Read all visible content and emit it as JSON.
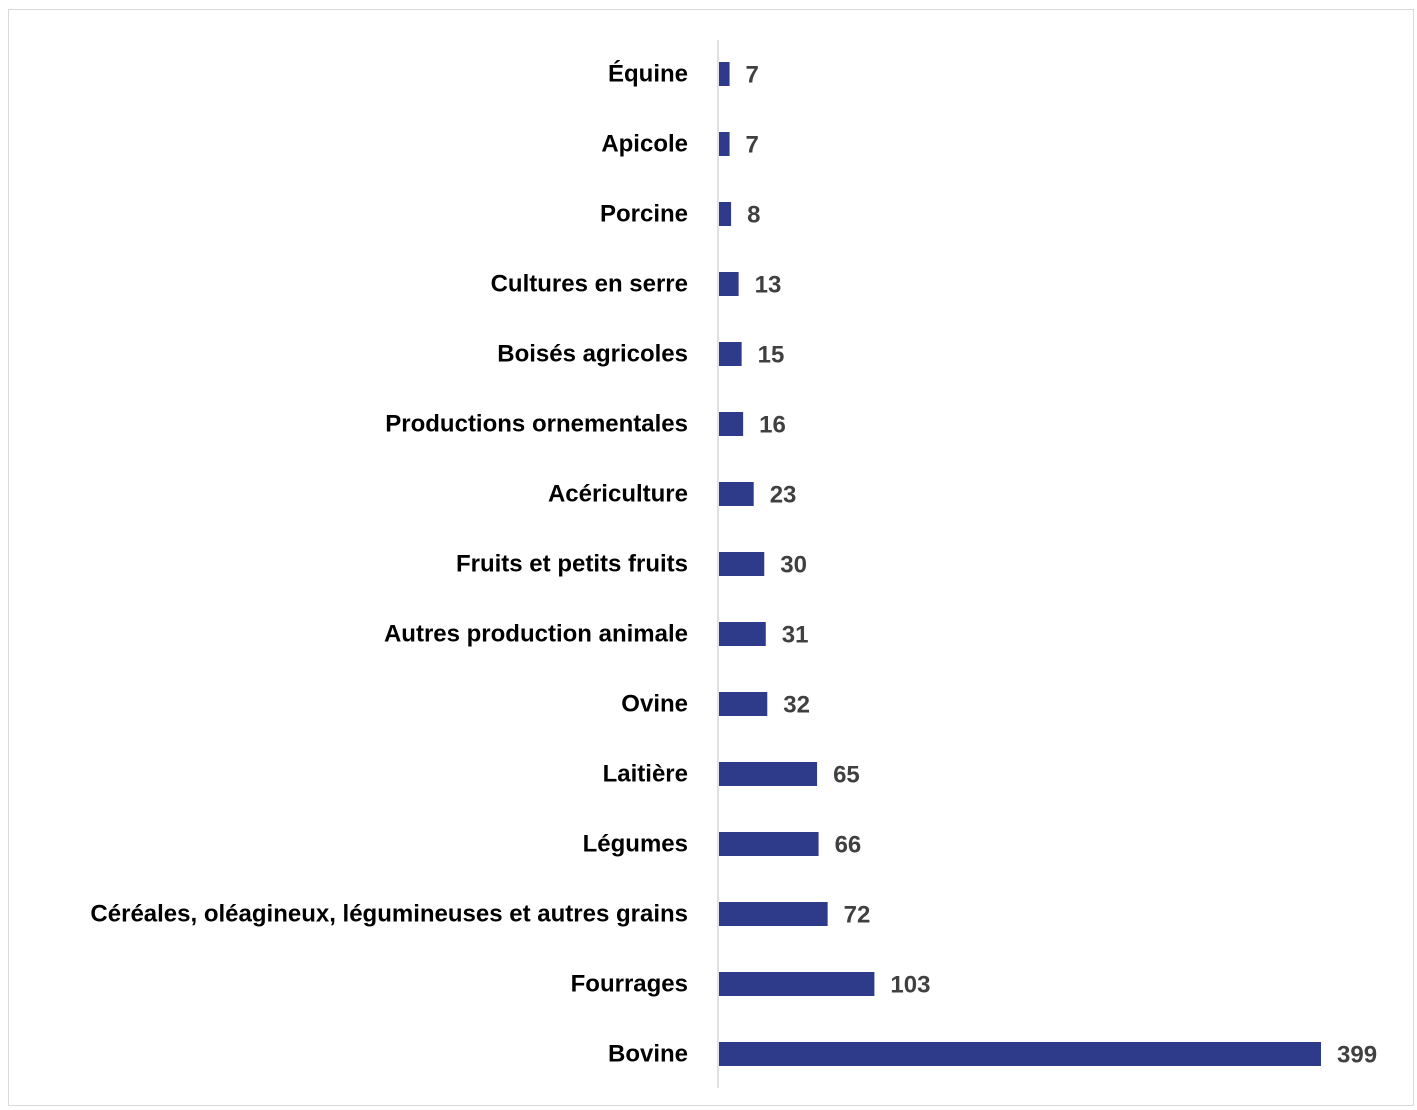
{
  "chart_data": {
    "type": "bar",
    "orientation": "horizontal",
    "categories": [
      "Équine",
      "Apicole",
      "Porcine",
      "Cultures en serre",
      "Boisés agricoles",
      "Productions ornementales",
      "Acériculture",
      "Fruits et petits fruits",
      "Autres production animale",
      "Ovine",
      "Laitière",
      "Légumes",
      "Céréales, oléagineux, légumineuses et autres grains",
      "Fourrages",
      "Bovine"
    ],
    "values": [
      7,
      7,
      8,
      13,
      15,
      16,
      23,
      30,
      31,
      32,
      65,
      66,
      72,
      103,
      399
    ],
    "title": "",
    "xlabel": "",
    "ylabel": "",
    "xlim": [
      0,
      399
    ],
    "grid": false,
    "legend": "none",
    "data_labels": true,
    "colors": {
      "bar": "#2E3A8A",
      "axis": "#d9d9d9",
      "category_text": "#000000",
      "value_text": "#404040"
    }
  }
}
